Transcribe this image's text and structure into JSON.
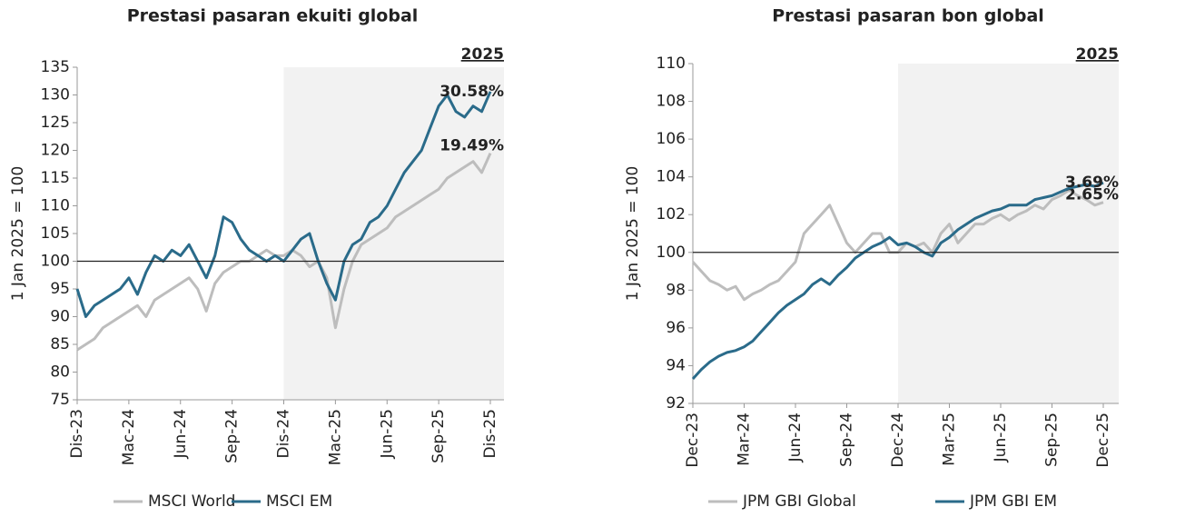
{
  "chart_data": [
    {
      "type": "line",
      "title": "Prestasi pasaran ekuiti global",
      "y_label": "1 Jan 2025 = 100",
      "heading": "2025",
      "categories": [
        "Dis-23",
        null,
        null,
        null,
        null,
        null,
        "Mac-24",
        null,
        null,
        null,
        null,
        null,
        "Jun-24",
        null,
        null,
        null,
        null,
        null,
        "Sep-24",
        null,
        null,
        null,
        null,
        null,
        "Dis-24",
        null,
        null,
        null,
        null,
        null,
        "Mac-25",
        null,
        null,
        null,
        null,
        null,
        "Jun-25",
        null,
        null,
        null,
        null,
        null,
        "Sep-25",
        null,
        null,
        null,
        null,
        null,
        "Dis-25"
      ],
      "series": [
        {
          "name": "MSCI World",
          "color": "#bdbdbd",
          "end_label": "19.49%",
          "label_color": "#8c8c8c",
          "values": [
            84,
            85,
            86,
            88,
            89,
            90,
            91,
            92,
            90,
            93,
            94,
            95,
            96,
            97,
            95,
            91,
            96,
            98,
            99,
            100,
            100,
            101,
            102,
            101,
            101,
            102,
            101,
            99,
            100,
            97,
            88,
            95,
            100,
            103,
            104,
            105,
            106,
            108,
            109,
            110,
            111,
            112,
            113,
            115,
            116,
            117,
            118,
            116,
            119.5
          ]
        },
        {
          "name": "MSCI EM",
          "color": "#2a6b8a",
          "end_label": "30.58%",
          "label_color": "#2a6b8a",
          "values": [
            95,
            90,
            92,
            93,
            94,
            95,
            97,
            94,
            98,
            101,
            100,
            102,
            101,
            103,
            100,
            97,
            101,
            108,
            107,
            104,
            102,
            101,
            100,
            101,
            100,
            102,
            104,
            105,
            100,
            96,
            93,
            100,
            103,
            104,
            107,
            108,
            110,
            113,
            116,
            118,
            120,
            124,
            128,
            130,
            127,
            126,
            128,
            127,
            130.6
          ]
        }
      ],
      "ylim": [
        75,
        135
      ],
      "yticks": [
        75,
        80,
        85,
        90,
        95,
        100,
        105,
        110,
        115,
        120,
        125,
        130,
        135
      ],
      "hline": 100
    },
    {
      "type": "line",
      "title": "Prestasi pasaran bon global",
      "y_label": "1 Jan 2025 = 100",
      "heading": "2025",
      "categories": [
        "Dec-23",
        null,
        null,
        null,
        null,
        null,
        "Mar-24",
        null,
        null,
        null,
        null,
        null,
        "Jun-24",
        null,
        null,
        null,
        null,
        null,
        "Sep-24",
        null,
        null,
        null,
        null,
        null,
        "Dec-24",
        null,
        null,
        null,
        null,
        null,
        "Mar-25",
        null,
        null,
        null,
        null,
        null,
        "Jun-25",
        null,
        null,
        null,
        null,
        null,
        "Sep-25",
        null,
        null,
        null,
        null,
        null,
        "Dec-25"
      ],
      "series": [
        {
          "name": "JPM GBI Global",
          "color": "#bdbdbd",
          "end_label": "2.65%",
          "label_color": "#8c8c8c",
          "values": [
            99.5,
            99,
            98.5,
            98.3,
            98,
            98.2,
            97.5,
            97.8,
            98,
            98.3,
            98.5,
            99,
            99.5,
            101,
            101.5,
            102,
            102.5,
            101.5,
            100.5,
            100,
            100.5,
            101,
            101,
            100,
            100,
            100.5,
            100.3,
            100.5,
            100,
            101,
            101.5,
            100.5,
            101,
            101.5,
            101.5,
            101.8,
            102,
            101.7,
            102,
            102.2,
            102.5,
            102.3,
            102.8,
            103,
            103.3,
            103,
            102.8,
            102.5,
            102.65
          ]
        },
        {
          "name": "JPM GBI EM",
          "color": "#2a6b8a",
          "end_label": "3.69%",
          "label_color": "#2a6b8a",
          "values": [
            93.3,
            93.8,
            94.2,
            94.5,
            94.7,
            94.8,
            95,
            95.3,
            95.8,
            96.3,
            96.8,
            97.2,
            97.5,
            97.8,
            98.3,
            98.6,
            98.3,
            98.8,
            99.2,
            99.7,
            100,
            100.3,
            100.5,
            100.8,
            100.4,
            100.5,
            100.3,
            100,
            99.8,
            100.5,
            100.8,
            101.2,
            101.5,
            101.8,
            102,
            102.2,
            102.3,
            102.5,
            102.5,
            102.5,
            102.8,
            102.9,
            103,
            103.2,
            103.4,
            103.5,
            103.6,
            103.5,
            103.69
          ]
        }
      ],
      "ylim": [
        92,
        110
      ],
      "yticks": [
        92,
        94,
        96,
        98,
        100,
        102,
        104,
        106,
        108,
        110
      ],
      "hline": 100
    }
  ]
}
